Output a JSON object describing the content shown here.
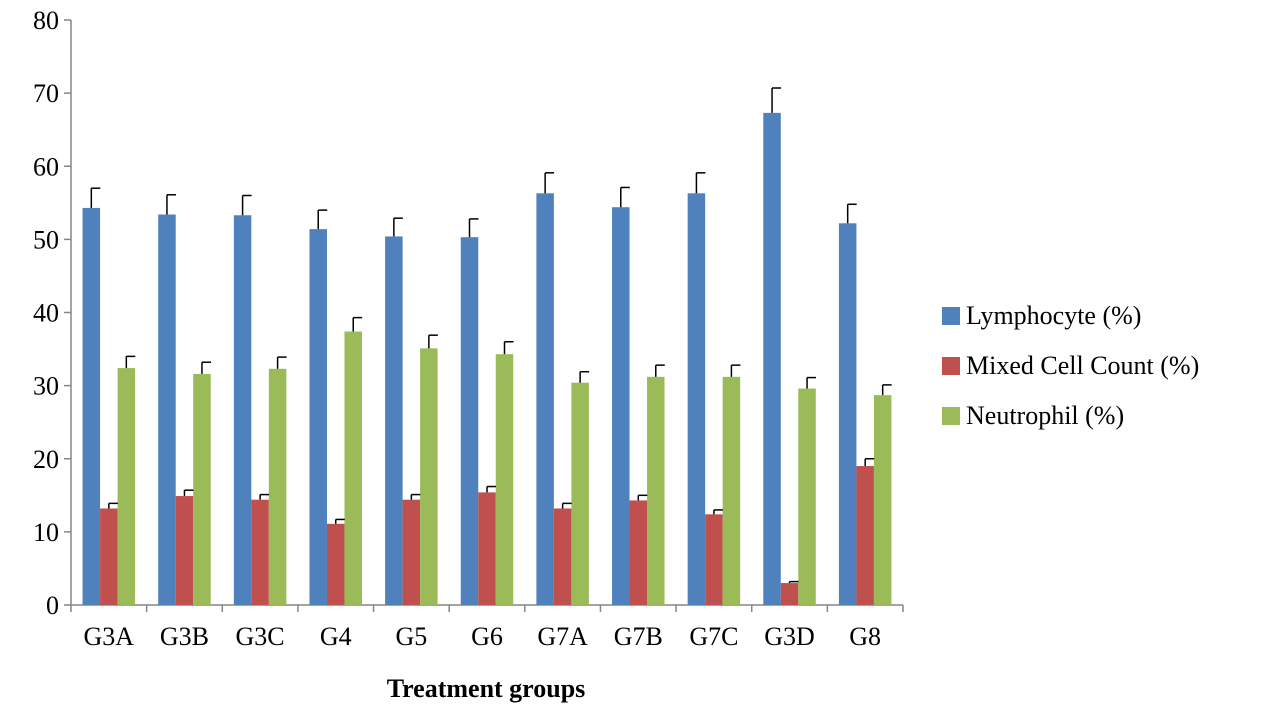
{
  "chart_data": {
    "type": "bar",
    "title": "",
    "xlabel": "Treatment groups",
    "ylabel": "",
    "ylim": [
      0,
      80
    ],
    "yticks": [
      0,
      10,
      20,
      30,
      40,
      50,
      60,
      70,
      80
    ],
    "grid": false,
    "legend_position": "right",
    "error_bars": true,
    "categories": [
      "G3A",
      "G3B",
      "G3C",
      "G4",
      "G5",
      "G6",
      "G7A",
      "G7B",
      "G7C",
      "G3D",
      "G8"
    ],
    "series": [
      {
        "name": "Lymphocyte (%)",
        "color": "#4F81BD",
        "values": [
          54.3,
          53.4,
          53.3,
          51.4,
          50.4,
          50.3,
          56.3,
          54.4,
          56.3,
          67.3,
          52.2
        ],
        "errors": [
          2.7,
          2.7,
          2.7,
          2.6,
          2.5,
          2.5,
          2.8,
          2.7,
          2.8,
          3.4,
          2.6
        ]
      },
      {
        "name": "Mixed Cell Count (%)",
        "color": "#C0504D",
        "values": [
          13.2,
          14.9,
          14.4,
          11.1,
          14.4,
          15.4,
          13.2,
          14.3,
          12.4,
          3.0,
          19.0
        ],
        "errors": [
          0.7,
          0.8,
          0.7,
          0.6,
          0.7,
          0.8,
          0.7,
          0.7,
          0.6,
          0.2,
          1.0
        ]
      },
      {
        "name": "Neutrophil (%)",
        "color": "#9BBB59",
        "values": [
          32.4,
          31.6,
          32.3,
          37.4,
          35.1,
          34.3,
          30.4,
          31.2,
          31.2,
          29.6,
          28.7
        ],
        "errors": [
          1.6,
          1.6,
          1.6,
          1.9,
          1.8,
          1.7,
          1.5,
          1.6,
          1.6,
          1.5,
          1.4
        ]
      }
    ]
  }
}
